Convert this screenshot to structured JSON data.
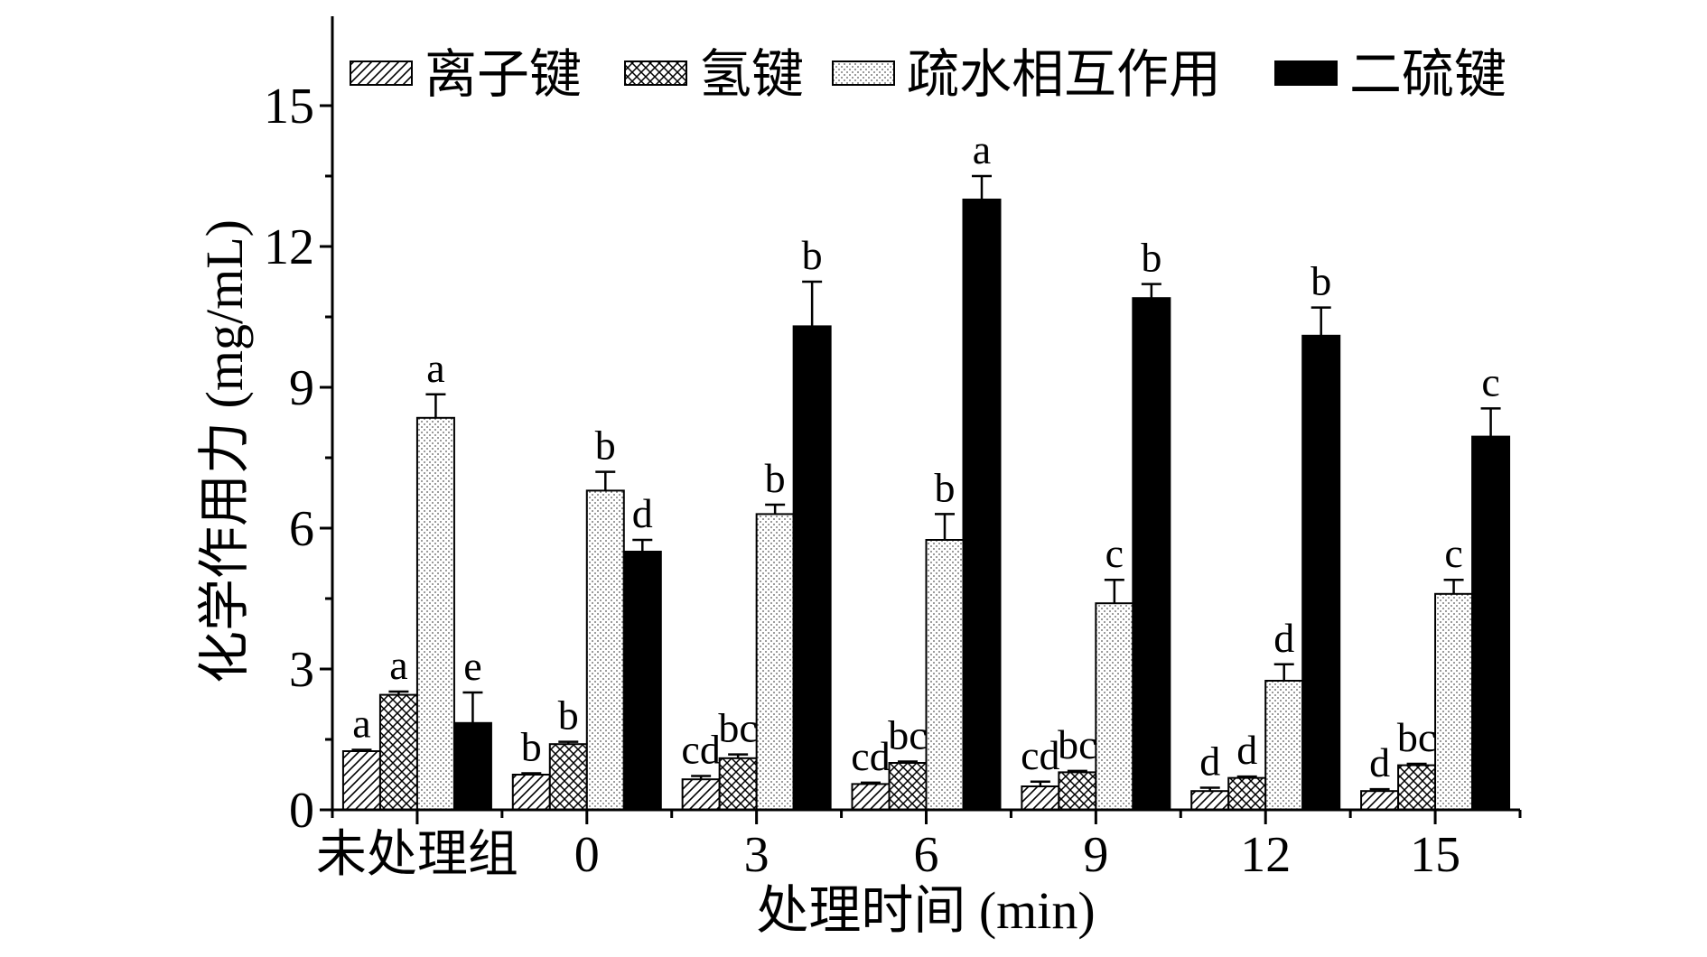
{
  "chart_data": {
    "type": "bar",
    "title": "",
    "xlabel": "处理时间 (min)",
    "ylabel": "化学作用力 (mg/mL)",
    "ylim": [
      0,
      17
    ],
    "yticks": [
      0,
      3,
      6,
      9,
      12,
      15
    ],
    "legend_position": "top",
    "categories": [
      "未处理组",
      "0",
      "3",
      "6",
      "9",
      "12",
      "15"
    ],
    "series": [
      {
        "name": "离子键",
        "pattern": "diagonal-hatch",
        "color": "#ffffff",
        "values": [
          1.25,
          0.75,
          0.65,
          0.55,
          0.5,
          0.4,
          0.4
        ],
        "errors": [
          0.03,
          0.03,
          0.07,
          0.03,
          0.1,
          0.07,
          0.04
        ],
        "labels": [
          "a",
          "b",
          "cd",
          "cd",
          "cd",
          "d",
          "d"
        ]
      },
      {
        "name": "氢键",
        "pattern": "crosshatch",
        "color": "#ffffff",
        "values": [
          2.45,
          1.4,
          1.1,
          1.0,
          0.8,
          0.68,
          0.95
        ],
        "errors": [
          0.07,
          0.05,
          0.08,
          0.03,
          0.03,
          0.03,
          0.03
        ],
        "labels": [
          "a",
          "b",
          "bc",
          "bc",
          "bc",
          "d",
          "bc"
        ]
      },
      {
        "name": "疏水相互作用",
        "pattern": "dots",
        "color": "#ffffff",
        "values": [
          8.35,
          6.8,
          6.3,
          5.75,
          4.4,
          2.75,
          4.6
        ],
        "errors": [
          0.5,
          0.4,
          0.2,
          0.55,
          0.5,
          0.35,
          0.3
        ],
        "labels": [
          "a",
          "b",
          "b",
          "b",
          "c",
          "d",
          "c"
        ]
      },
      {
        "name": "二硫键",
        "pattern": "solid",
        "color": "#000000",
        "values": [
          1.85,
          5.5,
          10.3,
          13.0,
          10.9,
          10.1,
          7.95
        ],
        "errors": [
          0.65,
          0.25,
          0.95,
          0.5,
          0.3,
          0.6,
          0.6
        ],
        "labels": [
          "e",
          "d",
          "b",
          "a",
          "b",
          "b",
          "c"
        ]
      }
    ]
  }
}
